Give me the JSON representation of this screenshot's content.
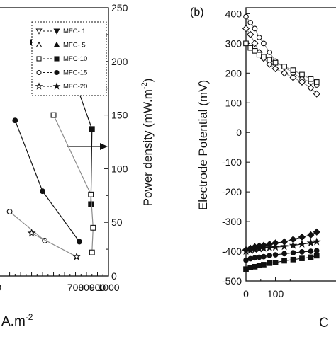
{
  "colors": {
    "ink": "#111111",
    "grey": "#8c8c8c",
    "bg": "#ffffff"
  },
  "chart_data": [
    {
      "type": "line",
      "panel_label": "",
      "xlabel": "A.m",
      "xlabel_superscript": "-2",
      "ylabel_right": "Power density (mW.m",
      "ylabel_right_superscript": "-2",
      "ylabel_right_close": ")",
      "xlim": [
        -20,
        1000
      ],
      "x_ticks": [
        "0",
        "700",
        "800",
        "900",
        "1000"
      ],
      "x_tick_values": [
        0,
        700,
        800,
        900,
        1000
      ],
      "x_ticks_visible_at": [
        0,
        100,
        200,
        300,
        400,
        500,
        600,
        700,
        800,
        900,
        1000
      ],
      "y_right_lim": [
        0,
        250
      ],
      "y_right_ticks": [
        "0",
        "50",
        "100",
        "150",
        "200",
        "250"
      ],
      "y_right_tick_values": [
        0,
        50,
        100,
        150,
        200,
        250
      ],
      "legend_location": "top-right",
      "legend": [
        "MFC- 1",
        "MFC- 5",
        "MFC-10",
        "MFC-15",
        "MFC-20"
      ],
      "annotation": "arrow pointing right toward the power density axis",
      "series": [
        {
          "legend_index": 2,
          "style": "filled",
          "marker": "square",
          "x": [
            310,
            690,
            850,
            840
          ],
          "y": [
            218,
            183,
            137,
            67
          ]
        },
        {
          "legend_index": 2,
          "style": "open",
          "marker": "square",
          "x": [
            500,
            840,
            860,
            850
          ],
          "y": [
            150,
            76,
            45,
            22
          ]
        },
        {
          "legend_index": 3,
          "style": "filled",
          "marker": "circle",
          "x": [
            150,
            400,
            735
          ],
          "y": [
            145,
            79,
            32
          ]
        },
        {
          "legend_index": 0,
          "style": "open",
          "marker": "circle",
          "x": [
            100,
            420
          ],
          "y": [
            60,
            33
          ]
        },
        {
          "legend_index": 4,
          "style": "open",
          "marker": "star",
          "x": [
            300,
            710
          ],
          "y": [
            40,
            18
          ]
        }
      ]
    },
    {
      "type": "line",
      "panel_label": "(b)",
      "ylabel": "Electrode Potential (mV)",
      "xlabel_partial": "C",
      "xlim": [
        0,
        320
      ],
      "x_ticks": [
        "0",
        "100"
      ],
      "x_tick_values": [
        0,
        100
      ],
      "ylim": [
        -500,
        420
      ],
      "y_ticks": [
        "400",
        "300",
        "200",
        "100",
        "0",
        "-100",
        "-200",
        "-300",
        "-400",
        "-500"
      ],
      "y_tick_values": [
        400,
        300,
        200,
        100,
        0,
        -100,
        -200,
        -300,
        -400,
        -500
      ],
      "series": [
        {
          "style": "open",
          "marker": "circle",
          "x": [
            0,
            15,
            30,
            45,
            60,
            80,
            100,
            130,
            160,
            190,
            220,
            240
          ],
          "y": [
            390,
            370,
            350,
            320,
            300,
            270,
            240,
            220,
            200,
            180,
            170,
            160
          ]
        },
        {
          "style": "open",
          "marker": "diamond",
          "x": [
            0,
            15,
            30,
            45,
            60,
            80,
            100,
            130,
            160,
            190,
            220,
            240
          ],
          "y": [
            350,
            330,
            300,
            270,
            250,
            230,
            215,
            200,
            185,
            170,
            150,
            130
          ]
        },
        {
          "style": "open",
          "marker": "square",
          "x": [
            0,
            15,
            30,
            45,
            60,
            80,
            100,
            130,
            160,
            190,
            220,
            240
          ],
          "y": [
            300,
            285,
            275,
            262,
            255,
            245,
            235,
            222,
            210,
            195,
            180,
            170
          ]
        },
        {
          "style": "filled",
          "marker": "diamond",
          "x": [
            0,
            15,
            30,
            45,
            60,
            80,
            100,
            130,
            160,
            190,
            220,
            240
          ],
          "y": [
            -395,
            -390,
            -385,
            -382,
            -380,
            -376,
            -372,
            -368,
            -360,
            -352,
            -345,
            -335
          ]
        },
        {
          "style": "filled",
          "marker": "star",
          "x": [
            0,
            15,
            30,
            45,
            60,
            80,
            100,
            130,
            160,
            190,
            220,
            240
          ],
          "y": [
            -400,
            -397,
            -395,
            -392,
            -390,
            -388,
            -386,
            -384,
            -380,
            -376,
            -372,
            -368
          ]
        },
        {
          "style": "filled",
          "marker": "circle",
          "x": [
            0,
            15,
            30,
            45,
            60,
            80,
            100,
            130,
            160,
            190,
            220,
            240
          ],
          "y": [
            -430,
            -425,
            -422,
            -420,
            -418,
            -414,
            -412,
            -408,
            -405,
            -402,
            -400,
            -398
          ]
        },
        {
          "style": "filled",
          "marker": "square",
          "x": [
            0,
            15,
            30,
            45,
            60,
            80,
            100,
            130,
            160,
            190,
            220,
            240
          ],
          "y": [
            -460,
            -455,
            -452,
            -448,
            -445,
            -440,
            -438,
            -432,
            -428,
            -424,
            -420,
            -415
          ]
        }
      ]
    }
  ]
}
